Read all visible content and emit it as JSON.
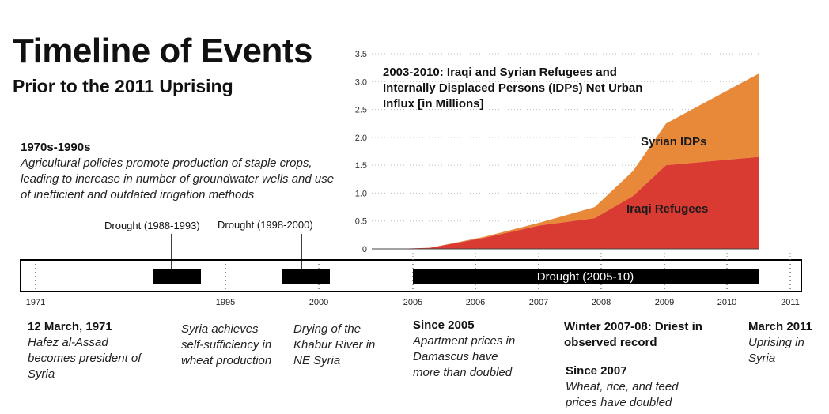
{
  "header": {
    "title": "Timeline of Events",
    "subtitle": "Prior to the 2011 Uprising"
  },
  "era": {
    "heading": "1970s-1990s",
    "text": "Agricultural policies promote production of staple crops, leading to increase in number of groundwater wells and use of inefficient and outdated irrigation methods"
  },
  "droughts": [
    {
      "label": "Drought (1988-1993)"
    },
    {
      "label": "Drought (1998-2000)"
    },
    {
      "label": "Drought (2005-10)"
    }
  ],
  "timeline": {
    "tick_labels": [
      "1971",
      "1995",
      "2000",
      "2005",
      "2006",
      "2007",
      "2008",
      "2009",
      "2010",
      "2011"
    ]
  },
  "events": [
    {
      "heading": "12 March, 1971",
      "text": "Hafez al-Assad becomes president of Syria"
    },
    {
      "heading": "",
      "text": "Syria achieves self-sufficiency in wheat production"
    },
    {
      "heading": "",
      "text": "Drying of the Khabur River in NE Syria"
    },
    {
      "heading": "Since 2005",
      "text": "Apartment prices in Damascus have more than doubled"
    },
    {
      "heading": "Winter 2007-08: Driest in observed record",
      "text": ""
    },
    {
      "heading": "Since 2007",
      "text": "Wheat, rice, and feed prices have doubled"
    },
    {
      "heading": "March 2011",
      "text": "Uprising in Syria"
    }
  ],
  "colors": {
    "iraqi": "#d93a32",
    "syrian": "#e8893a",
    "bar": "#000000",
    "grid": "#bbbbbb"
  },
  "chart_data": {
    "type": "area",
    "title": "2003-2010: Iraqi and Syrian Refugees and Internally Displaced Persons (IDPs) Net Urban Influx [in Millions]",
    "x": [
      2003,
      2004,
      2005,
      2006,
      2007,
      2007.7,
      2008.3,
      2010
    ],
    "series": [
      {
        "name": "Iraqi Refugees",
        "values": [
          0,
          0.02,
          0.2,
          0.42,
          0.55,
          0.95,
          1.5,
          1.65
        ]
      },
      {
        "name": "Syrian IDPs",
        "values": [
          0,
          0,
          0.02,
          0.05,
          0.2,
          0.45,
          0.75,
          1.5
        ]
      }
    ],
    "stacked": true,
    "ylim": [
      0,
      3.5
    ],
    "yticks": [
      "0",
      "0.5",
      "1.0",
      "1.5",
      "2.0",
      "2.5",
      "3.0",
      "3.5"
    ],
    "ytick_values": [
      0,
      0.5,
      1.0,
      1.5,
      2.0,
      2.5,
      3.0,
      3.5
    ],
    "grid": true,
    "xlabel": "",
    "ylabel": ""
  }
}
